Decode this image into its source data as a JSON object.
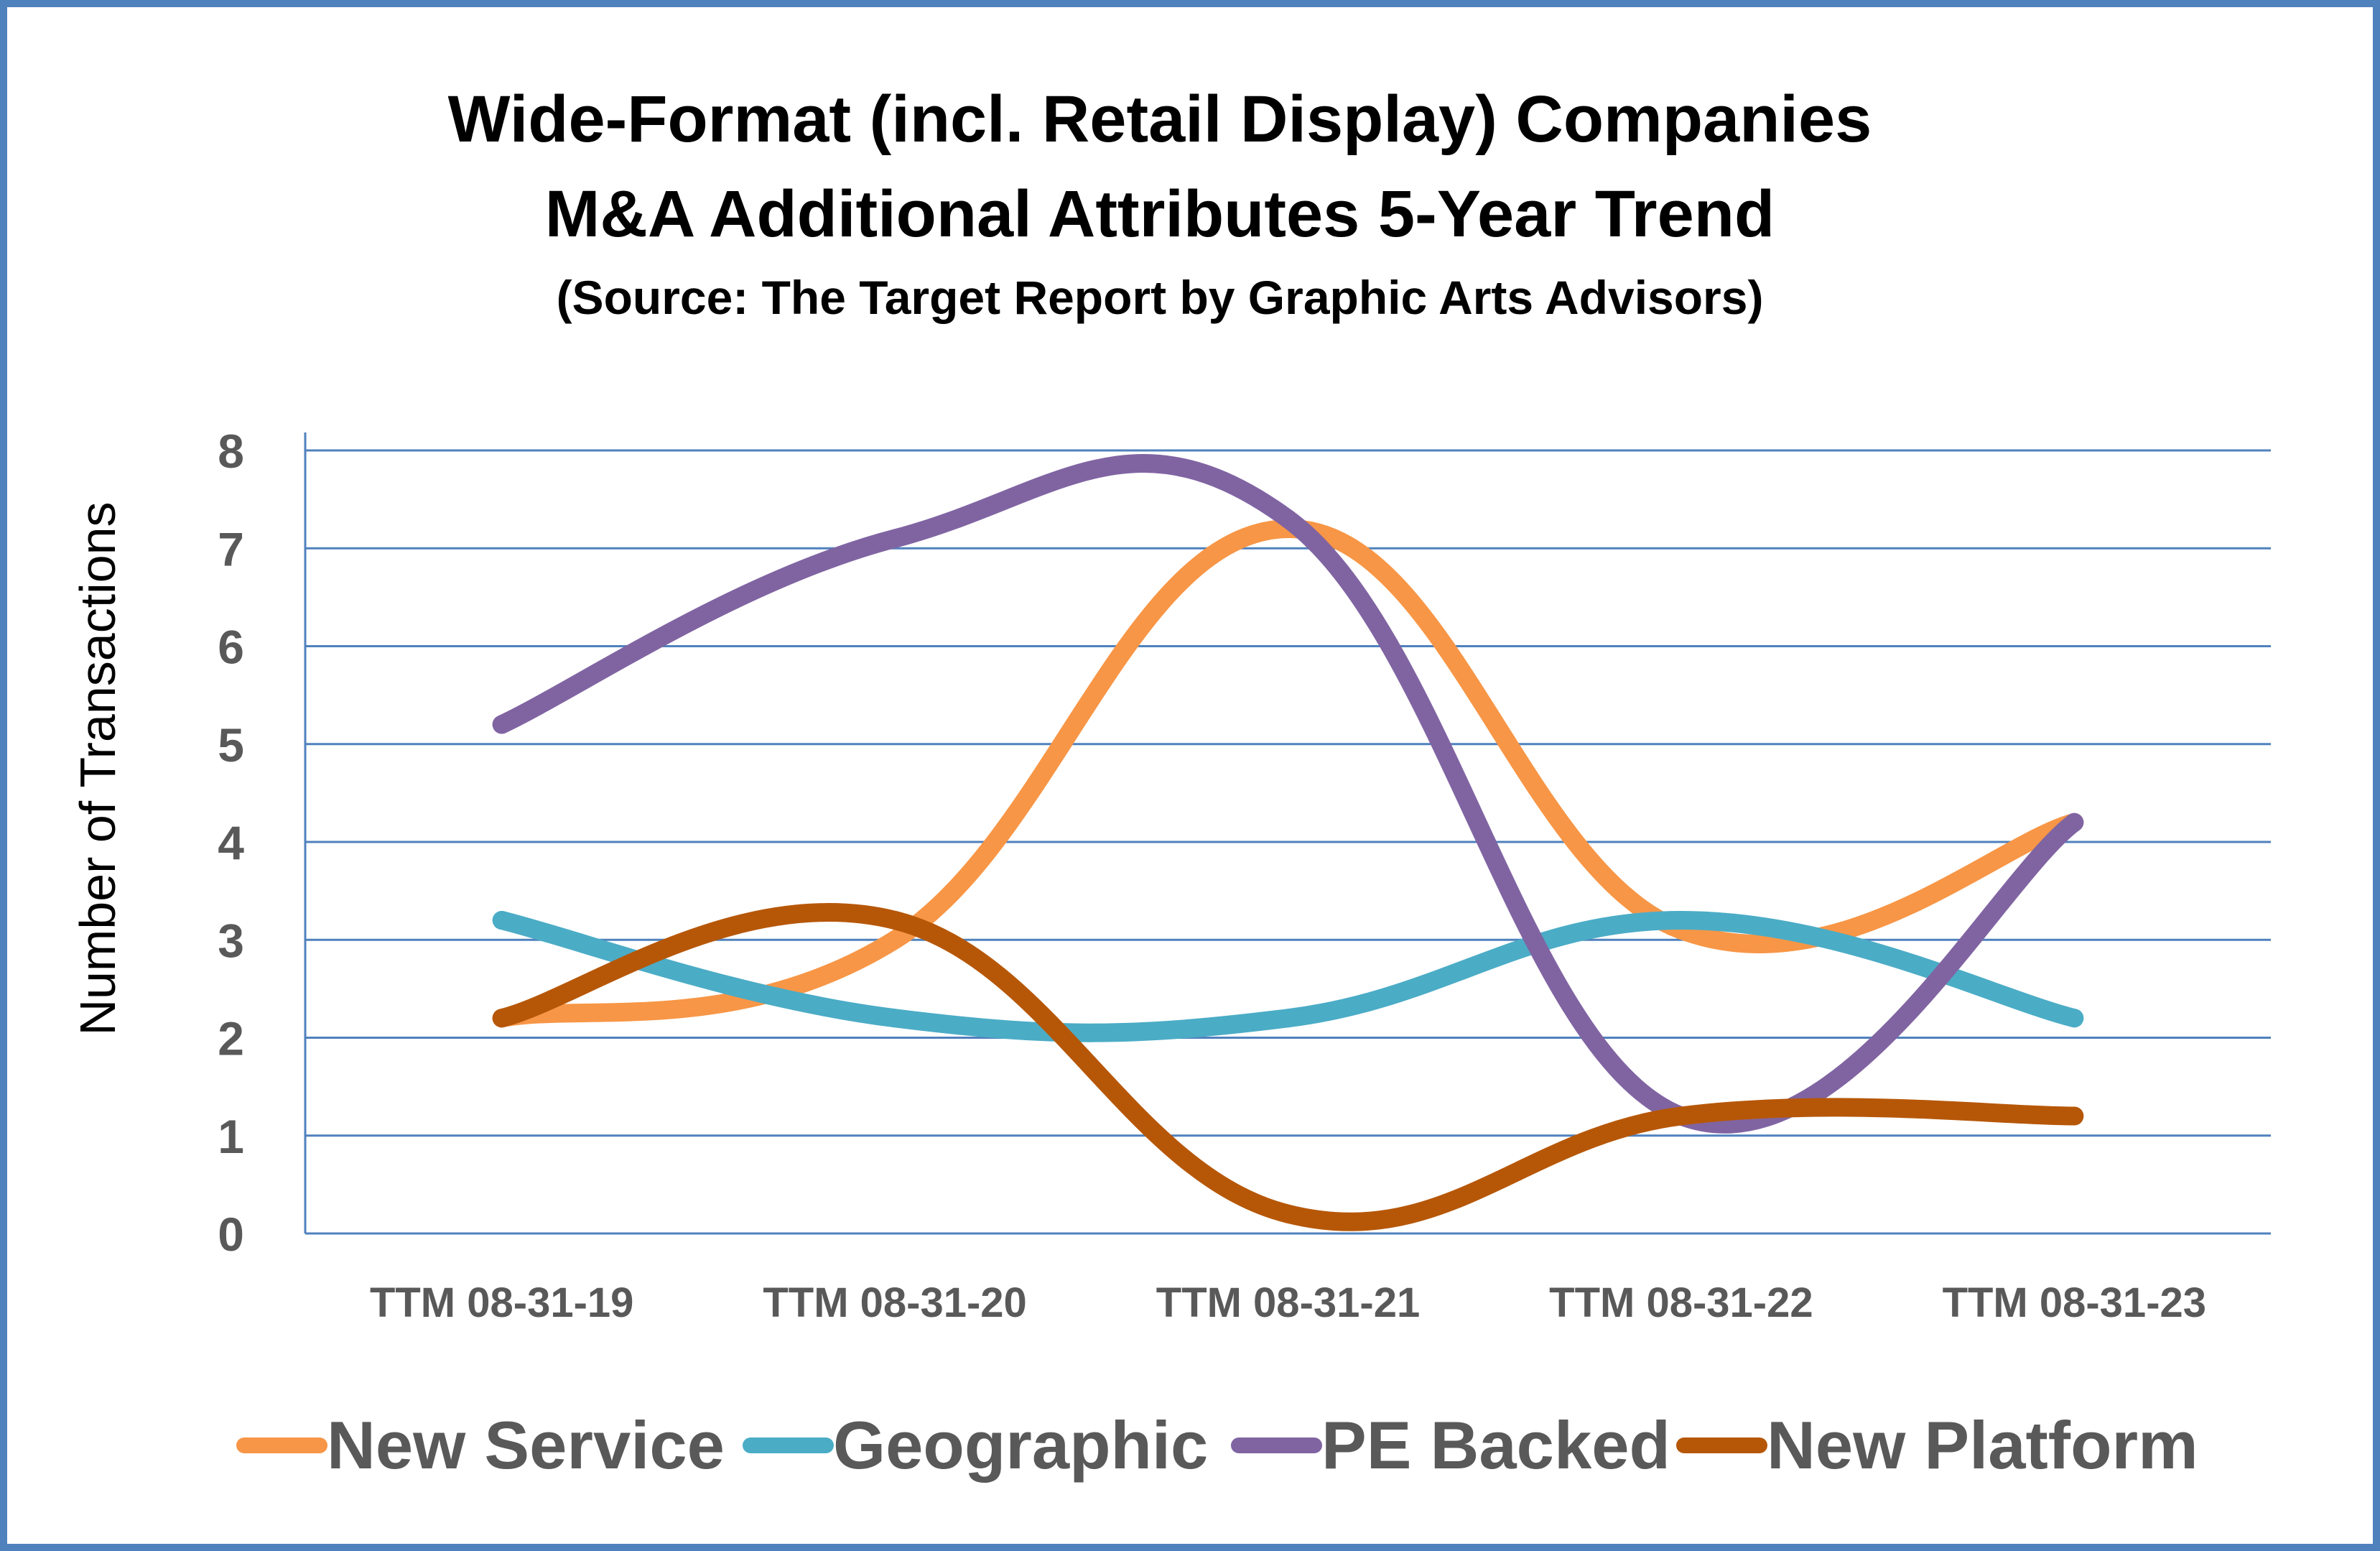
{
  "chart_data": {
    "type": "line",
    "title_lines": [
      "Wide-Format (incl. Retail Display) Companies",
      "M&A Additional Attributes 5-Year Trend"
    ],
    "subtitle": "(Source: The Target Report by Graphic Arts Advisors)",
    "ylabel": "Number of Transactions",
    "xlabel": "",
    "ylim": [
      0,
      8
    ],
    "yticks": [
      "0",
      "1",
      "2",
      "3",
      "4",
      "5",
      "6",
      "7",
      "8"
    ],
    "categories": [
      "TTM 08-31-19",
      "TTM 08-31-20",
      "TTM 08-31-21",
      "TTM 08-31-22",
      "TTM 08-31-23"
    ],
    "grid": true,
    "smooth": true,
    "legend_position": "bottom",
    "series": [
      {
        "name": "New Service",
        "color": "#f79646",
        "values": [
          2.2,
          3.0,
          7.2,
          3.1,
          4.2
        ]
      },
      {
        "name": "Geographic",
        "color": "#4bacc6",
        "values": [
          3.2,
          2.2,
          2.2,
          3.2,
          2.2
        ]
      },
      {
        "name": "PE Backed",
        "color": "#8064a2",
        "values": [
          5.2,
          7.1,
          7.3,
          1.2,
          4.2
        ]
      },
      {
        "name": "New Platform",
        "color": "#b65708",
        "values": [
          2.2,
          3.2,
          0.2,
          1.2,
          1.2
        ]
      }
    ],
    "gridline_color": "#4f81bd",
    "frame_color": "#4f81bd"
  }
}
